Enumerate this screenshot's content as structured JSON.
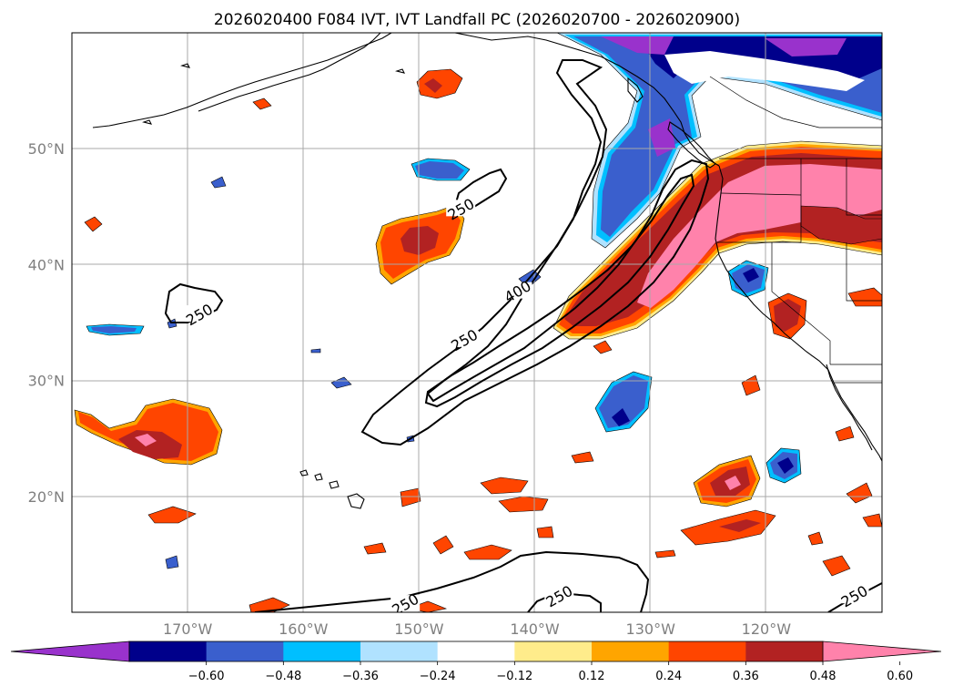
{
  "title": "2026020400 F084 IVT, IVT Landfall PC (2026020700 - 2026020900)",
  "map": {
    "lon_range": [
      -180,
      -110
    ],
    "lat_range": [
      10,
      60
    ],
    "lon_ticks": [
      {
        "lon": -170,
        "label": "170°W"
      },
      {
        "lon": -160,
        "label": "160°W"
      },
      {
        "lon": -150,
        "label": "150°W"
      },
      {
        "lon": -140,
        "label": "140°W"
      },
      {
        "lon": -130,
        "label": "130°W"
      },
      {
        "lon": -120,
        "label": "120°W"
      }
    ],
    "lat_ticks": [
      {
        "lat": 50,
        "label": "50°N"
      },
      {
        "lat": 40,
        "label": "40°N"
      },
      {
        "lat": 30,
        "label": "30°N"
      },
      {
        "lat": 20,
        "label": "20°N"
      }
    ],
    "gridlines": true
  },
  "contour_labels": [
    {
      "text": "250",
      "lon": -146.4,
      "lat": 44.8
    },
    {
      "text": "250",
      "lon": -169.0,
      "lat": 35.7
    },
    {
      "text": "250",
      "lon": -146.1,
      "lat": 33.5
    },
    {
      "text": "400",
      "lon": -141.5,
      "lat": 37.7
    },
    {
      "text": "250",
      "lon": -151.2,
      "lat": 10.7
    },
    {
      "text": "250",
      "lon": -137.9,
      "lat": 11.4
    },
    {
      "text": "250",
      "lon": -112.4,
      "lat": 11.4
    }
  ],
  "colorbar": {
    "colors": [
      "#9932cc",
      "#00008b",
      "#3a5fcd",
      "#00bfff",
      "#b0e2ff",
      "#ffffff",
      "#ffec8b",
      "#ffa500",
      "#ff4500",
      "#b22222",
      "#ff82ab"
    ],
    "ticks": [
      "−0.60",
      "−0.48",
      "−0.36",
      "−0.24",
      "−0.12",
      "0.12",
      "0.24",
      "0.36",
      "0.48",
      "0.60"
    ],
    "extend": "both"
  }
}
